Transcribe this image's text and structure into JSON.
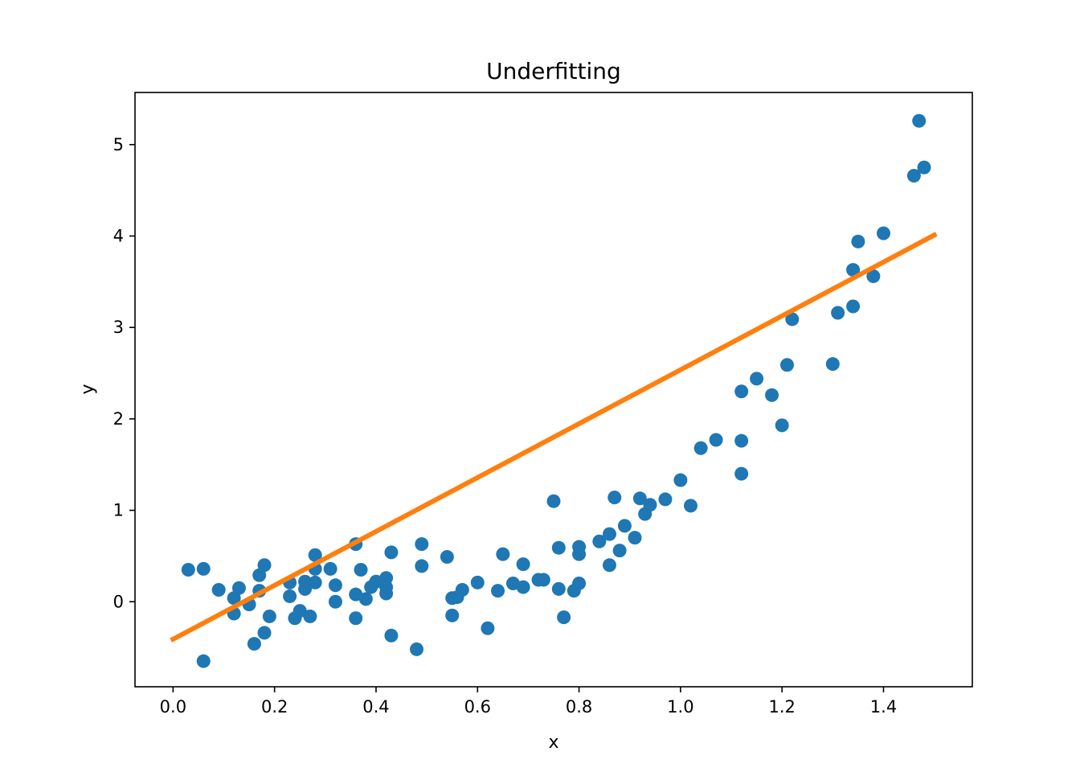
{
  "chart_data": {
    "type": "scatter",
    "title": "Underfitting",
    "xlabel": "x",
    "ylabel": "y",
    "xlim": [
      -0.075,
      1.575
    ],
    "ylim": [
      -0.93,
      5.57
    ],
    "xticks": [
      0.0,
      0.2,
      0.4,
      0.6,
      0.8,
      1.0,
      1.2,
      1.4
    ],
    "xtick_labels": [
      "0.0",
      "0.2",
      "0.4",
      "0.6",
      "0.8",
      "1.0",
      "1.2",
      "1.4"
    ],
    "yticks": [
      0,
      1,
      2,
      3,
      4,
      5
    ],
    "ytick_labels": [
      "0",
      "1",
      "2",
      "3",
      "4",
      "5"
    ],
    "grid": false,
    "series": [
      {
        "kind": "scatter",
        "color": "#1f77b4",
        "points": [
          [
            0.03,
            0.35
          ],
          [
            0.06,
            0.36
          ],
          [
            0.06,
            -0.65
          ],
          [
            0.09,
            0.13
          ],
          [
            0.12,
            -0.13
          ],
          [
            0.12,
            0.04
          ],
          [
            0.13,
            0.15
          ],
          [
            0.15,
            -0.03
          ],
          [
            0.16,
            -0.46
          ],
          [
            0.17,
            0.29
          ],
          [
            0.17,
            0.12
          ],
          [
            0.18,
            -0.34
          ],
          [
            0.18,
            0.4
          ],
          [
            0.19,
            -0.16
          ],
          [
            0.23,
            0.21
          ],
          [
            0.23,
            0.06
          ],
          [
            0.24,
            -0.18
          ],
          [
            0.25,
            -0.1
          ],
          [
            0.26,
            0.14
          ],
          [
            0.26,
            0.22
          ],
          [
            0.27,
            -0.16
          ],
          [
            0.28,
            0.21
          ],
          [
            0.28,
            0.51
          ],
          [
            0.28,
            0.36
          ],
          [
            0.31,
            0.36
          ],
          [
            0.32,
            0.0
          ],
          [
            0.32,
            0.18
          ],
          [
            0.36,
            -0.18
          ],
          [
            0.36,
            0.63
          ],
          [
            0.36,
            0.08
          ],
          [
            0.37,
            0.35
          ],
          [
            0.38,
            0.03
          ],
          [
            0.39,
            0.16
          ],
          [
            0.4,
            0.22
          ],
          [
            0.42,
            0.26
          ],
          [
            0.42,
            0.09
          ],
          [
            0.42,
            0.16
          ],
          [
            0.43,
            0.54
          ],
          [
            0.43,
            -0.37
          ],
          [
            0.48,
            -0.52
          ],
          [
            0.49,
            0.63
          ],
          [
            0.49,
            0.39
          ],
          [
            0.54,
            0.49
          ],
          [
            0.55,
            0.04
          ],
          [
            0.55,
            -0.15
          ],
          [
            0.56,
            0.05
          ],
          [
            0.57,
            0.13
          ],
          [
            0.6,
            0.21
          ],
          [
            0.62,
            -0.29
          ],
          [
            0.64,
            0.12
          ],
          [
            0.65,
            0.52
          ],
          [
            0.67,
            0.2
          ],
          [
            0.69,
            0.41
          ],
          [
            0.69,
            0.16
          ],
          [
            0.72,
            0.24
          ],
          [
            0.73,
            0.24
          ],
          [
            0.75,
            1.1
          ],
          [
            0.76,
            0.59
          ],
          [
            0.76,
            0.14
          ],
          [
            0.77,
            -0.17
          ],
          [
            0.79,
            0.12
          ],
          [
            0.8,
            0.2
          ],
          [
            0.8,
            0.52
          ],
          [
            0.8,
            0.6
          ],
          [
            0.84,
            0.66
          ],
          [
            0.86,
            0.4
          ],
          [
            0.86,
            0.74
          ],
          [
            0.87,
            1.14
          ],
          [
            0.88,
            0.56
          ],
          [
            0.89,
            0.83
          ],
          [
            0.91,
            0.7
          ],
          [
            0.92,
            1.13
          ],
          [
            0.93,
            0.96
          ],
          [
            0.94,
            1.06
          ],
          [
            0.97,
            1.12
          ],
          [
            1.0,
            1.33
          ],
          [
            1.02,
            1.05
          ],
          [
            1.04,
            1.68
          ],
          [
            1.07,
            1.77
          ],
          [
            1.12,
            1.4
          ],
          [
            1.12,
            2.3
          ],
          [
            1.12,
            1.76
          ],
          [
            1.15,
            2.44
          ],
          [
            1.18,
            2.26
          ],
          [
            1.2,
            1.93
          ],
          [
            1.21,
            2.59
          ],
          [
            1.22,
            3.09
          ],
          [
            1.3,
            2.6
          ],
          [
            1.31,
            3.16
          ],
          [
            1.34,
            3.63
          ],
          [
            1.34,
            3.23
          ],
          [
            1.35,
            3.94
          ],
          [
            1.38,
            3.56
          ],
          [
            1.4,
            4.03
          ],
          [
            1.46,
            4.66
          ],
          [
            1.47,
            5.26
          ],
          [
            1.48,
            4.75
          ]
        ]
      },
      {
        "kind": "line",
        "color": "#ff7f0e",
        "points": [
          [
            0.0,
            -0.41
          ],
          [
            1.5,
            4.01
          ]
        ]
      }
    ]
  }
}
